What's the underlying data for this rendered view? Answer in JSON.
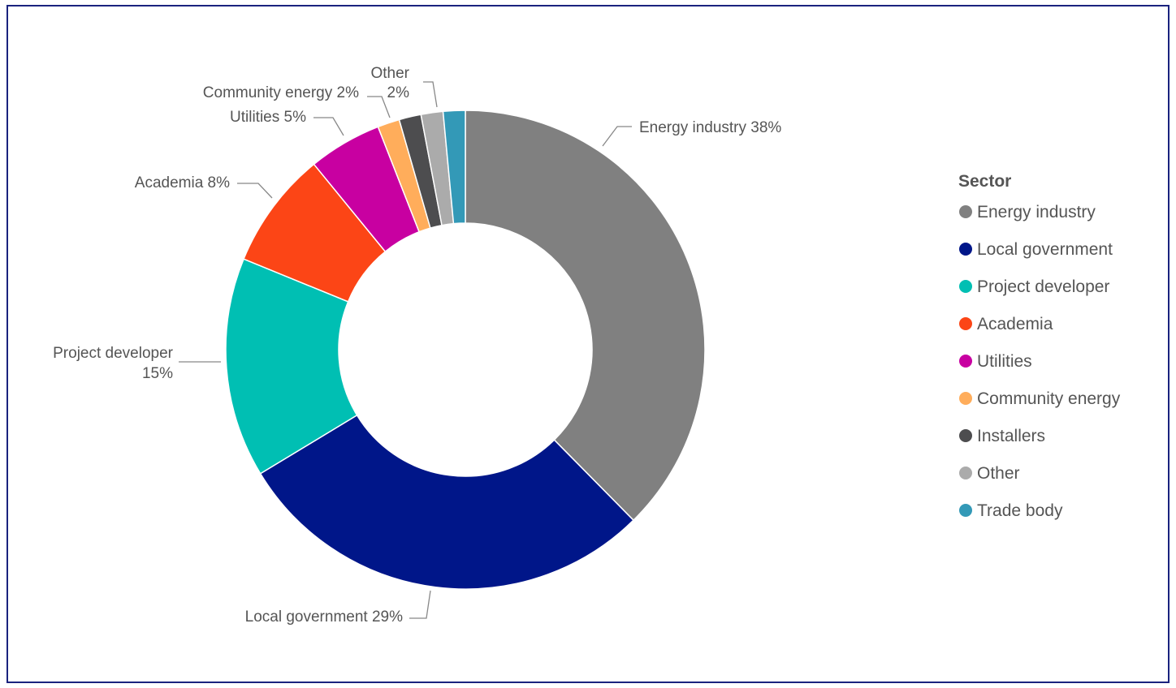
{
  "chart_data": {
    "type": "pie",
    "donut": true,
    "legend": {
      "title": "Sector",
      "placement": "right"
    },
    "slices": [
      {
        "name": "Energy industry",
        "value": 38,
        "label": "Energy industry 38%",
        "color": "#808080"
      },
      {
        "name": "Local government",
        "value": 29,
        "label": "Local government 29%",
        "color": "#001689"
      },
      {
        "name": "Project developer",
        "value": 15,
        "label": "Project developer 15%",
        "color": "#00BFB3"
      },
      {
        "name": "Academia",
        "value": 8,
        "label": "Academia 8%",
        "color": "#FC4516"
      },
      {
        "name": "Utilities",
        "value": 5,
        "label": "Utilities 5%",
        "color": "#C800A1"
      },
      {
        "name": "Community energy",
        "value": 1.5,
        "label": "Community energy 2%",
        "color": "#FFAD5B"
      },
      {
        "name": "Installers",
        "value": 1.5,
        "label": "",
        "color": "#4D4D4F"
      },
      {
        "name": "Other",
        "value": 1.5,
        "label": "Other 2%",
        "color": "#ABABAB"
      },
      {
        "name": "Trade body",
        "value": 1.5,
        "label": "",
        "color": "#3399B7"
      }
    ]
  }
}
